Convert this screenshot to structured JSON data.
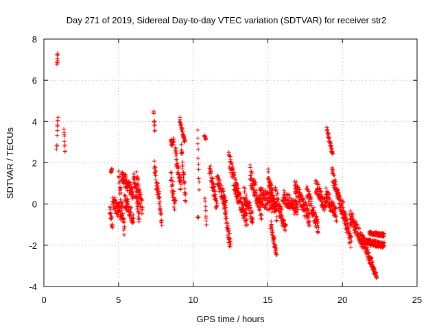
{
  "chart_data": {
    "type": "scatter",
    "title": "Day 271 of 2019, Sidereal Day-to-day VTEC variation (SDTVAR) for receiver str2",
    "xlabel": "GPS time / hours",
    "ylabel": "SDTVAR / TECUs",
    "xlim": [
      0,
      25
    ],
    "ylim": [
      -4,
      8
    ],
    "xticks": [
      0,
      5,
      10,
      15,
      20,
      25
    ],
    "yticks": [
      -4,
      -2,
      0,
      2,
      4,
      6,
      8
    ],
    "grid": true,
    "marker": "+",
    "color": "#ff0000",
    "series": [
      {
        "name": "SDTVAR",
        "segments": [
          {
            "x0": 0.88,
            "x1": 0.92,
            "y0": 6.7,
            "y1": 7.25,
            "noise": 0.15
          },
          {
            "x0": 0.85,
            "x1": 0.95,
            "y0": 2.6,
            "y1": 4.4,
            "noise": 0.2
          },
          {
            "x0": 1.35,
            "x1": 1.42,
            "y0": 3.65,
            "y1": 2.45,
            "noise": 0.1
          },
          {
            "x0": 4.5,
            "x1": 4.55,
            "y0": 1.5,
            "y1": 1.75,
            "noise": 0.05
          },
          {
            "x0": 4.4,
            "x1": 4.6,
            "y0": -0.2,
            "y1": -1.1,
            "noise": 0.3
          },
          {
            "x0": 4.6,
            "x1": 5.2,
            "y0": 0.2,
            "y1": -0.5,
            "noise": 0.4
          },
          {
            "x0": 5.0,
            "x1": 5.4,
            "y0": 1.4,
            "y1": -1.3,
            "noise": 0.35
          },
          {
            "x0": 5.2,
            "x1": 6.0,
            "y0": 1.4,
            "y1": 0.5,
            "noise": 0.3
          },
          {
            "x0": 5.4,
            "x1": 6.0,
            "y0": 0.2,
            "y1": -0.7,
            "noise": 0.35
          },
          {
            "x0": 6.0,
            "x1": 6.4,
            "y0": 1.5,
            "y1": -0.8,
            "noise": 0.4
          },
          {
            "x0": 6.2,
            "x1": 6.6,
            "y0": 1.2,
            "y1": -0.3,
            "noise": 0.4
          },
          {
            "x0": 7.35,
            "x1": 7.45,
            "y0": 4.5,
            "y1": 3.4,
            "noise": 0.2
          },
          {
            "x0": 7.4,
            "x1": 7.6,
            "y0": 1.9,
            "y1": 0.6,
            "noise": 0.3
          },
          {
            "x0": 7.6,
            "x1": 7.9,
            "y0": 0.9,
            "y1": -0.8,
            "noise": 0.3
          },
          {
            "x0": 8.5,
            "x1": 8.7,
            "y0": 2.9,
            "y1": 3.1,
            "noise": 0.2
          },
          {
            "x0": 8.5,
            "x1": 8.8,
            "y0": 1.5,
            "y1": -0.1,
            "noise": 0.5
          },
          {
            "x0": 8.8,
            "x1": 9.2,
            "y0": 2.5,
            "y1": 0.9,
            "noise": 0.4
          },
          {
            "x0": 9.1,
            "x1": 9.45,
            "y0": 4.1,
            "y1": 3.0,
            "noise": 0.15
          },
          {
            "x0": 9.2,
            "x1": 9.5,
            "y0": 2.6,
            "y1": 0.2,
            "noise": 0.4
          },
          {
            "x0": 10.3,
            "x1": 10.4,
            "y0": 3.55,
            "y1": 0.65,
            "noise": 0.1
          },
          {
            "x0": 10.3,
            "x1": 10.35,
            "y0": -0.65,
            "y1": -0.65,
            "noise": 0.02
          },
          {
            "x0": 10.75,
            "x1": 10.85,
            "y0": 3.35,
            "y1": 3.15,
            "noise": 0.05
          },
          {
            "x0": 10.8,
            "x1": 10.9,
            "y0": 0.2,
            "y1": -1.1,
            "noise": 0.1
          },
          {
            "x0": 11.1,
            "x1": 11.6,
            "y0": 1.7,
            "y1": -0.2,
            "noise": 0.35
          },
          {
            "x0": 11.6,
            "x1": 12.2,
            "y0": 1.2,
            "y1": 0.0,
            "noise": 0.35
          },
          {
            "x0": 12.0,
            "x1": 12.5,
            "y0": 0.2,
            "y1": -2.0,
            "noise": 0.4
          },
          {
            "x0": 12.4,
            "x1": 13.0,
            "y0": 2.2,
            "y1": 0.3,
            "noise": 0.4
          },
          {
            "x0": 12.8,
            "x1": 13.6,
            "y0": 1.0,
            "y1": -0.9,
            "noise": 0.4
          },
          {
            "x0": 13.4,
            "x1": 14.0,
            "y0": 0.5,
            "y1": -0.8,
            "noise": 0.4
          },
          {
            "x0": 13.8,
            "x1": 14.6,
            "y0": 1.5,
            "y1": -0.4,
            "noise": 0.45
          },
          {
            "x0": 14.4,
            "x1": 15.4,
            "y0": 0.4,
            "y1": 0.0,
            "noise": 0.45
          },
          {
            "x0": 15.0,
            "x1": 15.6,
            "y0": 1.4,
            "y1": -0.6,
            "noise": 0.4
          },
          {
            "x0": 15.2,
            "x1": 15.6,
            "y0": -1.0,
            "y1": -2.5,
            "noise": 0.25
          },
          {
            "x0": 15.5,
            "x1": 16.2,
            "y0": 0.5,
            "y1": -1.3,
            "noise": 0.4
          },
          {
            "x0": 16.0,
            "x1": 17.0,
            "y0": 0.4,
            "y1": -0.3,
            "noise": 0.35
          },
          {
            "x0": 16.8,
            "x1": 17.8,
            "y0": 0.9,
            "y1": -0.8,
            "noise": 0.4
          },
          {
            "x0": 17.6,
            "x1": 18.4,
            "y0": 0.6,
            "y1": -1.1,
            "noise": 0.35
          },
          {
            "x0": 18.2,
            "x1": 18.9,
            "y0": 0.9,
            "y1": -0.2,
            "noise": 0.35
          },
          {
            "x0": 18.95,
            "x1": 19.35,
            "y0": 3.65,
            "y1": 2.4,
            "noise": 0.12
          },
          {
            "x0": 18.9,
            "x1": 19.6,
            "y0": 0.5,
            "y1": -0.6,
            "noise": 0.35
          },
          {
            "x0": 19.3,
            "x1": 19.8,
            "y0": 1.5,
            "y1": 0.2,
            "noise": 0.3
          },
          {
            "x0": 19.7,
            "x1": 20.2,
            "y0": 0.4,
            "y1": -0.8,
            "noise": 0.3
          },
          {
            "x0": 20.0,
            "x1": 20.6,
            "y0": -0.2,
            "y1": -2.0,
            "noise": 0.4
          },
          {
            "x0": 20.5,
            "x1": 21.4,
            "y0": -0.6,
            "y1": -1.9,
            "noise": 0.35
          },
          {
            "x0": 21.3,
            "x1": 22.1,
            "y0": -1.6,
            "y1": -3.2,
            "noise": 0.25
          },
          {
            "x0": 22.0,
            "x1": 22.3,
            "y0": -3.0,
            "y1": -3.5,
            "noise": 0.1
          },
          {
            "x0": 21.4,
            "x1": 22.8,
            "y0": -1.8,
            "y1": -2.0,
            "noise": 0.15
          },
          {
            "x0": 21.8,
            "x1": 22.8,
            "y0": -1.4,
            "y1": -1.5,
            "noise": 0.08
          }
        ]
      }
    ]
  }
}
